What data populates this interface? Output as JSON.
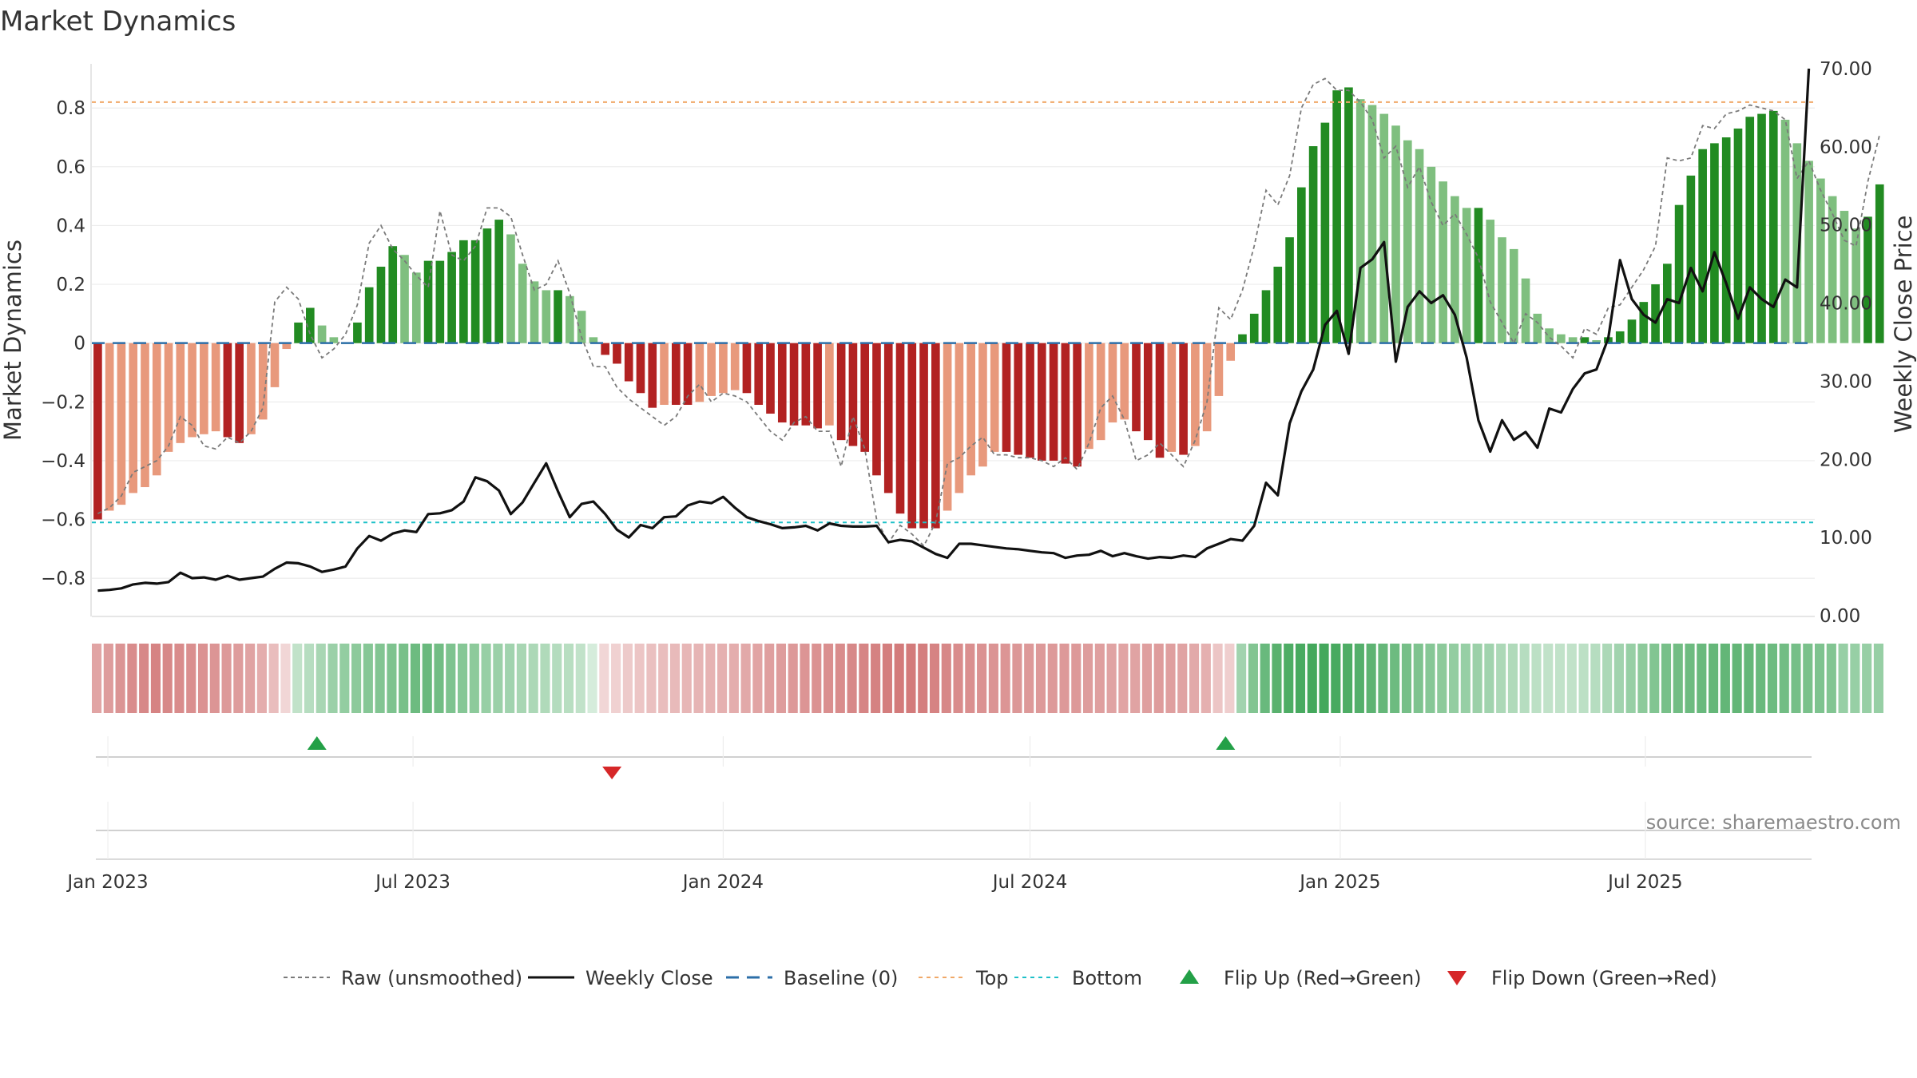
{
  "title": "Market Dynamics",
  "source": "source: sharemaestro.com",
  "chart_data": {
    "type": "bar",
    "start_date": "2022-12-26",
    "weeks": 146,
    "y_left": {
      "label": "Market Dynamics",
      "ylim": [
        -0.93,
        0.95
      ],
      "ticks": [
        "0.8",
        "0.6",
        "0.4",
        "0.2",
        "0",
        "−0.2",
        "−0.4",
        "−0.6",
        "−0.8"
      ],
      "tick_values": [
        0.8,
        0.6,
        0.4,
        0.2,
        0,
        -0.2,
        -0.4,
        -0.6,
        -0.8
      ]
    },
    "y_right": {
      "label": "Weekly Close Price",
      "ylim": [
        -0.1,
        70.6
      ],
      "ticks": [
        "70.00",
        "60.00",
        "50.00",
        "40.00",
        "30.00",
        "20.00",
        "10.00",
        "0.00"
      ],
      "tick_values": [
        70,
        60,
        50,
        40,
        30,
        20,
        10,
        0
      ]
    },
    "x_ticks": [
      {
        "label": "Jan 2023",
        "date": "2023-01-01"
      },
      {
        "label": "Jul 2023",
        "date": "2023-07-01"
      },
      {
        "label": "Jan 2024",
        "date": "2024-01-01"
      },
      {
        "label": "Jul 2024",
        "date": "2024-07-01"
      },
      {
        "label": "Jan 2025",
        "date": "2025-01-01"
      },
      {
        "label": "Jul 2025",
        "date": "2025-07-01"
      }
    ],
    "top": 0.82,
    "bottom": -0.61,
    "baseline": 0,
    "colors": {
      "dark_red": "#b22222",
      "light_red": "#e8997c",
      "dark_green": "#228b22",
      "light_green": "#7fbf7f",
      "top": "#f0a868",
      "bottom": "#1ec0c8",
      "baseline": "#2c6fa8",
      "flip_up": "#23a047",
      "flip_down": "#d62728",
      "close": "#111111",
      "raw": "#7a7a7a"
    },
    "series": [
      {
        "name": "Market Dynamics (smoothed)",
        "values": [
          -0.6,
          -0.57,
          -0.55,
          -0.51,
          -0.49,
          -0.45,
          -0.37,
          -0.34,
          -0.32,
          -0.31,
          -0.3,
          -0.32,
          -0.34,
          -0.31,
          -0.26,
          -0.15,
          -0.02,
          0.07,
          0.12,
          0.06,
          0.02,
          0.0,
          0.07,
          0.19,
          0.26,
          0.33,
          0.3,
          0.24,
          0.28,
          0.28,
          0.31,
          0.35,
          0.35,
          0.39,
          0.42,
          0.37,
          0.27,
          0.21,
          0.18,
          0.18,
          0.16,
          0.11,
          0.02,
          -0.04,
          -0.07,
          -0.13,
          -0.17,
          -0.22,
          -0.21,
          -0.21,
          -0.21,
          -0.2,
          -0.18,
          -0.17,
          -0.16,
          -0.17,
          -0.21,
          -0.24,
          -0.27,
          -0.28,
          -0.28,
          -0.29,
          -0.28,
          -0.33,
          -0.35,
          -0.37,
          -0.45,
          -0.51,
          -0.58,
          -0.63,
          -0.63,
          -0.63,
          -0.57,
          -0.51,
          -0.45,
          -0.42,
          -0.37,
          -0.37,
          -0.38,
          -0.39,
          -0.4,
          -0.4,
          -0.41,
          -0.42,
          -0.36,
          -0.33,
          -0.27,
          -0.26,
          -0.3,
          -0.33,
          -0.39,
          -0.37,
          -0.38,
          -0.35,
          -0.3,
          -0.18,
          -0.06,
          0.03,
          0.1,
          0.18,
          0.26,
          0.36,
          0.53,
          0.67,
          0.75,
          0.86,
          0.87,
          0.83,
          0.81,
          0.78,
          0.74,
          0.69,
          0.66,
          0.6,
          0.55,
          0.5,
          0.46,
          0.46,
          0.42,
          0.36,
          0.32,
          0.22,
          0.1,
          0.05,
          0.03,
          0.02,
          0.02,
          0.01,
          0.02,
          0.04,
          0.08,
          0.14,
          0.2,
          0.27,
          0.47,
          0.57,
          0.66,
          0.68,
          0.7,
          0.73,
          0.77,
          0.78,
          0.79,
          0.76,
          0.68,
          0.62,
          0.56,
          0.5,
          0.45,
          0.39,
          0.43,
          0.54
        ]
      },
      {
        "name": "Raw (unsmoothed)",
        "values": [
          -0.58,
          -0.56,
          -0.52,
          -0.44,
          -0.42,
          -0.4,
          -0.35,
          -0.25,
          -0.28,
          -0.35,
          -0.36,
          -0.32,
          -0.34,
          -0.3,
          -0.22,
          0.14,
          0.19,
          0.15,
          0.03,
          -0.05,
          -0.02,
          0.03,
          0.13,
          0.34,
          0.4,
          0.32,
          0.28,
          0.23,
          0.19,
          0.45,
          0.3,
          0.28,
          0.33,
          0.46,
          0.46,
          0.43,
          0.3,
          0.18,
          0.2,
          0.28,
          0.17,
          0.02,
          -0.08,
          -0.08,
          -0.15,
          -0.19,
          -0.22,
          -0.25,
          -0.28,
          -0.25,
          -0.18,
          -0.14,
          -0.2,
          -0.17,
          -0.18,
          -0.2,
          -0.25,
          -0.3,
          -0.33,
          -0.27,
          -0.25,
          -0.3,
          -0.3,
          -0.42,
          -0.25,
          -0.36,
          -0.6,
          -0.68,
          -0.62,
          -0.65,
          -0.69,
          -0.61,
          -0.41,
          -0.39,
          -0.35,
          -0.32,
          -0.38,
          -0.38,
          -0.39,
          -0.39,
          -0.4,
          -0.42,
          -0.39,
          -0.43,
          -0.34,
          -0.22,
          -0.18,
          -0.26,
          -0.4,
          -0.38,
          -0.34,
          -0.38,
          -0.42,
          -0.33,
          -0.2,
          0.12,
          0.08,
          0.18,
          0.33,
          0.52,
          0.47,
          0.57,
          0.8,
          0.88,
          0.9,
          0.86,
          0.86,
          0.82,
          0.76,
          0.63,
          0.67,
          0.53,
          0.6,
          0.48,
          0.4,
          0.44,
          0.37,
          0.29,
          0.14,
          0.07,
          0.0,
          0.1,
          0.07,
          0.02,
          -0.01,
          -0.05,
          0.05,
          0.03,
          0.12,
          0.13,
          0.19,
          0.25,
          0.33,
          0.63,
          0.62,
          0.63,
          0.74,
          0.73,
          0.78,
          0.79,
          0.81,
          0.8,
          0.79,
          0.76,
          0.56,
          0.62,
          0.52,
          0.44,
          0.35,
          0.33,
          0.55,
          0.71
        ]
      },
      {
        "name": "Weekly Close",
        "values": [
          3.2,
          3.3,
          3.5,
          4.0,
          4.2,
          4.1,
          4.3,
          5.5,
          4.8,
          4.9,
          4.6,
          5.1,
          4.6,
          4.8,
          5.0,
          6.0,
          6.8,
          6.7,
          6.3,
          5.6,
          5.9,
          6.3,
          8.6,
          10.2,
          9.6,
          10.5,
          10.9,
          10.7,
          13.0,
          13.1,
          13.5,
          14.6,
          17.7,
          17.2,
          16.0,
          13.0,
          14.5,
          17.0,
          19.5,
          15.9,
          12.6,
          14.3,
          14.6,
          13.0,
          11.0,
          10.0,
          11.6,
          11.2,
          12.6,
          12.7,
          14.1,
          14.6,
          14.4,
          15.2,
          13.8,
          12.6,
          12.1,
          11.7,
          11.2,
          11.3,
          11.5,
          10.9,
          11.8,
          11.5,
          11.4,
          11.4,
          11.5,
          9.4,
          9.7,
          9.5,
          8.7,
          7.9,
          7.4,
          9.2,
          9.2,
          9.0,
          8.8,
          8.6,
          8.5,
          8.3,
          8.1,
          8.0,
          7.4,
          7.7,
          7.8,
          8.3,
          7.6,
          8.0,
          7.6,
          7.3,
          7.5,
          7.4,
          7.7,
          7.5,
          8.6,
          9.2,
          9.8,
          9.6,
          11.5,
          17.0,
          15.4,
          24.6,
          28.7,
          31.5,
          37.2,
          39.0,
          33.5,
          44.5,
          45.6,
          47.8,
          32.5,
          39.5,
          41.5,
          40.0,
          41.0,
          38.5,
          33.0,
          25.0,
          21.0,
          25.0,
          22.5,
          23.5,
          21.5,
          26.5,
          26.0,
          29.0,
          31.0,
          31.5,
          35.5,
          45.5,
          40.5,
          38.5,
          37.5,
          40.5,
          40.0,
          44.5,
          41.5,
          46.5,
          42.5,
          38.0,
          42.0,
          40.5,
          39.5,
          43.0,
          42.0,
          70.0
        ]
      }
    ],
    "heat_strip_levels": [
      0.55,
      0.6,
      0.65,
      0.7,
      0.72,
      0.75,
      0.72,
      0.7,
      0.68,
      0.66,
      0.64,
      0.62,
      0.6,
      0.56,
      0.5,
      0.4,
      0.25,
      0.3,
      0.35,
      0.42,
      0.48,
      0.52,
      0.55,
      0.58,
      0.6,
      0.62,
      0.65,
      0.7,
      0.72,
      0.68,
      0.62,
      0.58,
      0.55,
      0.5,
      0.48,
      0.45,
      0.42,
      0.4,
      0.38,
      0.36,
      0.34,
      0.3,
      0.2,
      0.25,
      0.28,
      0.32,
      0.35,
      0.38,
      0.4,
      0.42,
      0.44,
      0.45,
      0.46,
      0.48,
      0.5,
      0.52,
      0.55,
      0.58,
      0.6,
      0.62,
      0.64,
      0.66,
      0.68,
      0.7,
      0.72,
      0.74,
      0.76,
      0.78,
      0.8,
      0.8,
      0.78,
      0.75,
      0.72,
      0.7,
      0.68,
      0.66,
      0.65,
      0.64,
      0.63,
      0.62,
      0.62,
      0.62,
      0.62,
      0.62,
      0.6,
      0.58,
      0.56,
      0.55,
      0.56,
      0.58,
      0.6,
      0.58,
      0.56,
      0.52,
      0.48,
      0.35,
      0.3,
      0.45,
      0.6,
      0.72,
      0.8,
      0.85,
      0.88,
      0.9,
      0.9,
      0.88,
      0.85,
      0.82,
      0.78,
      0.74,
      0.7,
      0.66,
      0.62,
      0.58,
      0.55,
      0.52,
      0.5,
      0.48,
      0.45,
      0.4,
      0.38,
      0.35,
      0.32,
      0.3,
      0.3,
      0.3,
      0.32,
      0.35,
      0.4,
      0.45,
      0.5,
      0.55,
      0.6,
      0.65,
      0.68,
      0.7,
      0.72,
      0.74,
      0.75,
      0.75,
      0.74,
      0.72,
      0.7,
      0.68,
      0.66,
      0.64,
      0.62,
      0.6
    ],
    "flips": [
      {
        "type": "up",
        "date": "2023-05-05"
      },
      {
        "type": "down",
        "date": "2023-10-27"
      },
      {
        "type": "up",
        "date": "2024-10-25"
      }
    ],
    "legend": [
      {
        "label": "Raw (unsmoothed)",
        "style": "raw"
      },
      {
        "label": "Weekly Close",
        "style": "close"
      },
      {
        "label": "Baseline (0)",
        "style": "baseline"
      },
      {
        "label": "Top",
        "style": "top"
      },
      {
        "label": "Bottom",
        "style": "bottom"
      },
      {
        "label": "Flip Up (Red→Green)",
        "style": "flip_up"
      },
      {
        "label": "Flip Down (Green→Red)",
        "style": "flip_down"
      }
    ]
  }
}
